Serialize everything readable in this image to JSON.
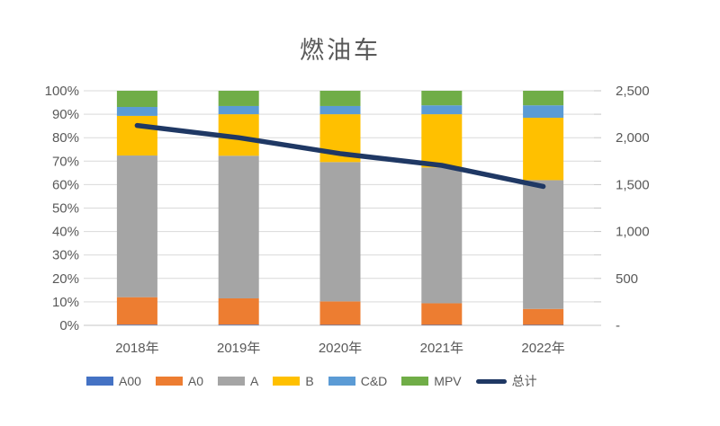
{
  "chart_data": {
    "type": "bar",
    "subtype": "stacked-100-percent-with-line",
    "title": "燃油车",
    "categories": [
      "2018年",
      "2019年",
      "2020年",
      "2021年",
      "2022年"
    ],
    "series": [
      {
        "name": "A00",
        "color": "#4472C4",
        "values": [
          0.3,
          0.3,
          0.2,
          0.2,
          0.2
        ]
      },
      {
        "name": "A0",
        "color": "#ED7D31",
        "values": [
          11.7,
          11.2,
          10.0,
          9.2,
          6.8
        ]
      },
      {
        "name": "A",
        "color": "#A5A5A5",
        "values": [
          60.4,
          60.8,
          59.4,
          57.9,
          54.9
        ]
      },
      {
        "name": "B",
        "color": "#FFC000",
        "values": [
          16.9,
          17.7,
          20.4,
          22.7,
          26.6
        ]
      },
      {
        "name": "C&D",
        "color": "#5B9BD5",
        "values": [
          3.8,
          3.5,
          3.5,
          3.8,
          5.3
        ]
      },
      {
        "name": "MPV",
        "color": "#70AD47",
        "values": [
          6.9,
          6.5,
          6.5,
          6.2,
          6.2
        ]
      }
    ],
    "line_series": {
      "name": "总计",
      "color": "#1F3864",
      "axis": "right",
      "values": [
        2130,
        2000,
        1830,
        1705,
        1480
      ]
    },
    "left_axis": {
      "min": 0,
      "max": 100,
      "tick_step": 10,
      "tick_labels": [
        "0%",
        "10%",
        "20%",
        "30%",
        "40%",
        "50%",
        "60%",
        "70%",
        "80%",
        "90%",
        "100%"
      ]
    },
    "right_axis": {
      "min": 0,
      "max": 2500,
      "tick_step": 250,
      "label_step": 500,
      "tick_labels": [
        "-",
        "500",
        "1,000",
        "1,500",
        "2,000",
        "2,500"
      ]
    },
    "legend_position": "bottom",
    "grid": true,
    "colors": {
      "grid": "#D9D9D9",
      "axis_line": "#C6C6C6",
      "axis_text": "#595959",
      "title_text": "#595959"
    }
  }
}
